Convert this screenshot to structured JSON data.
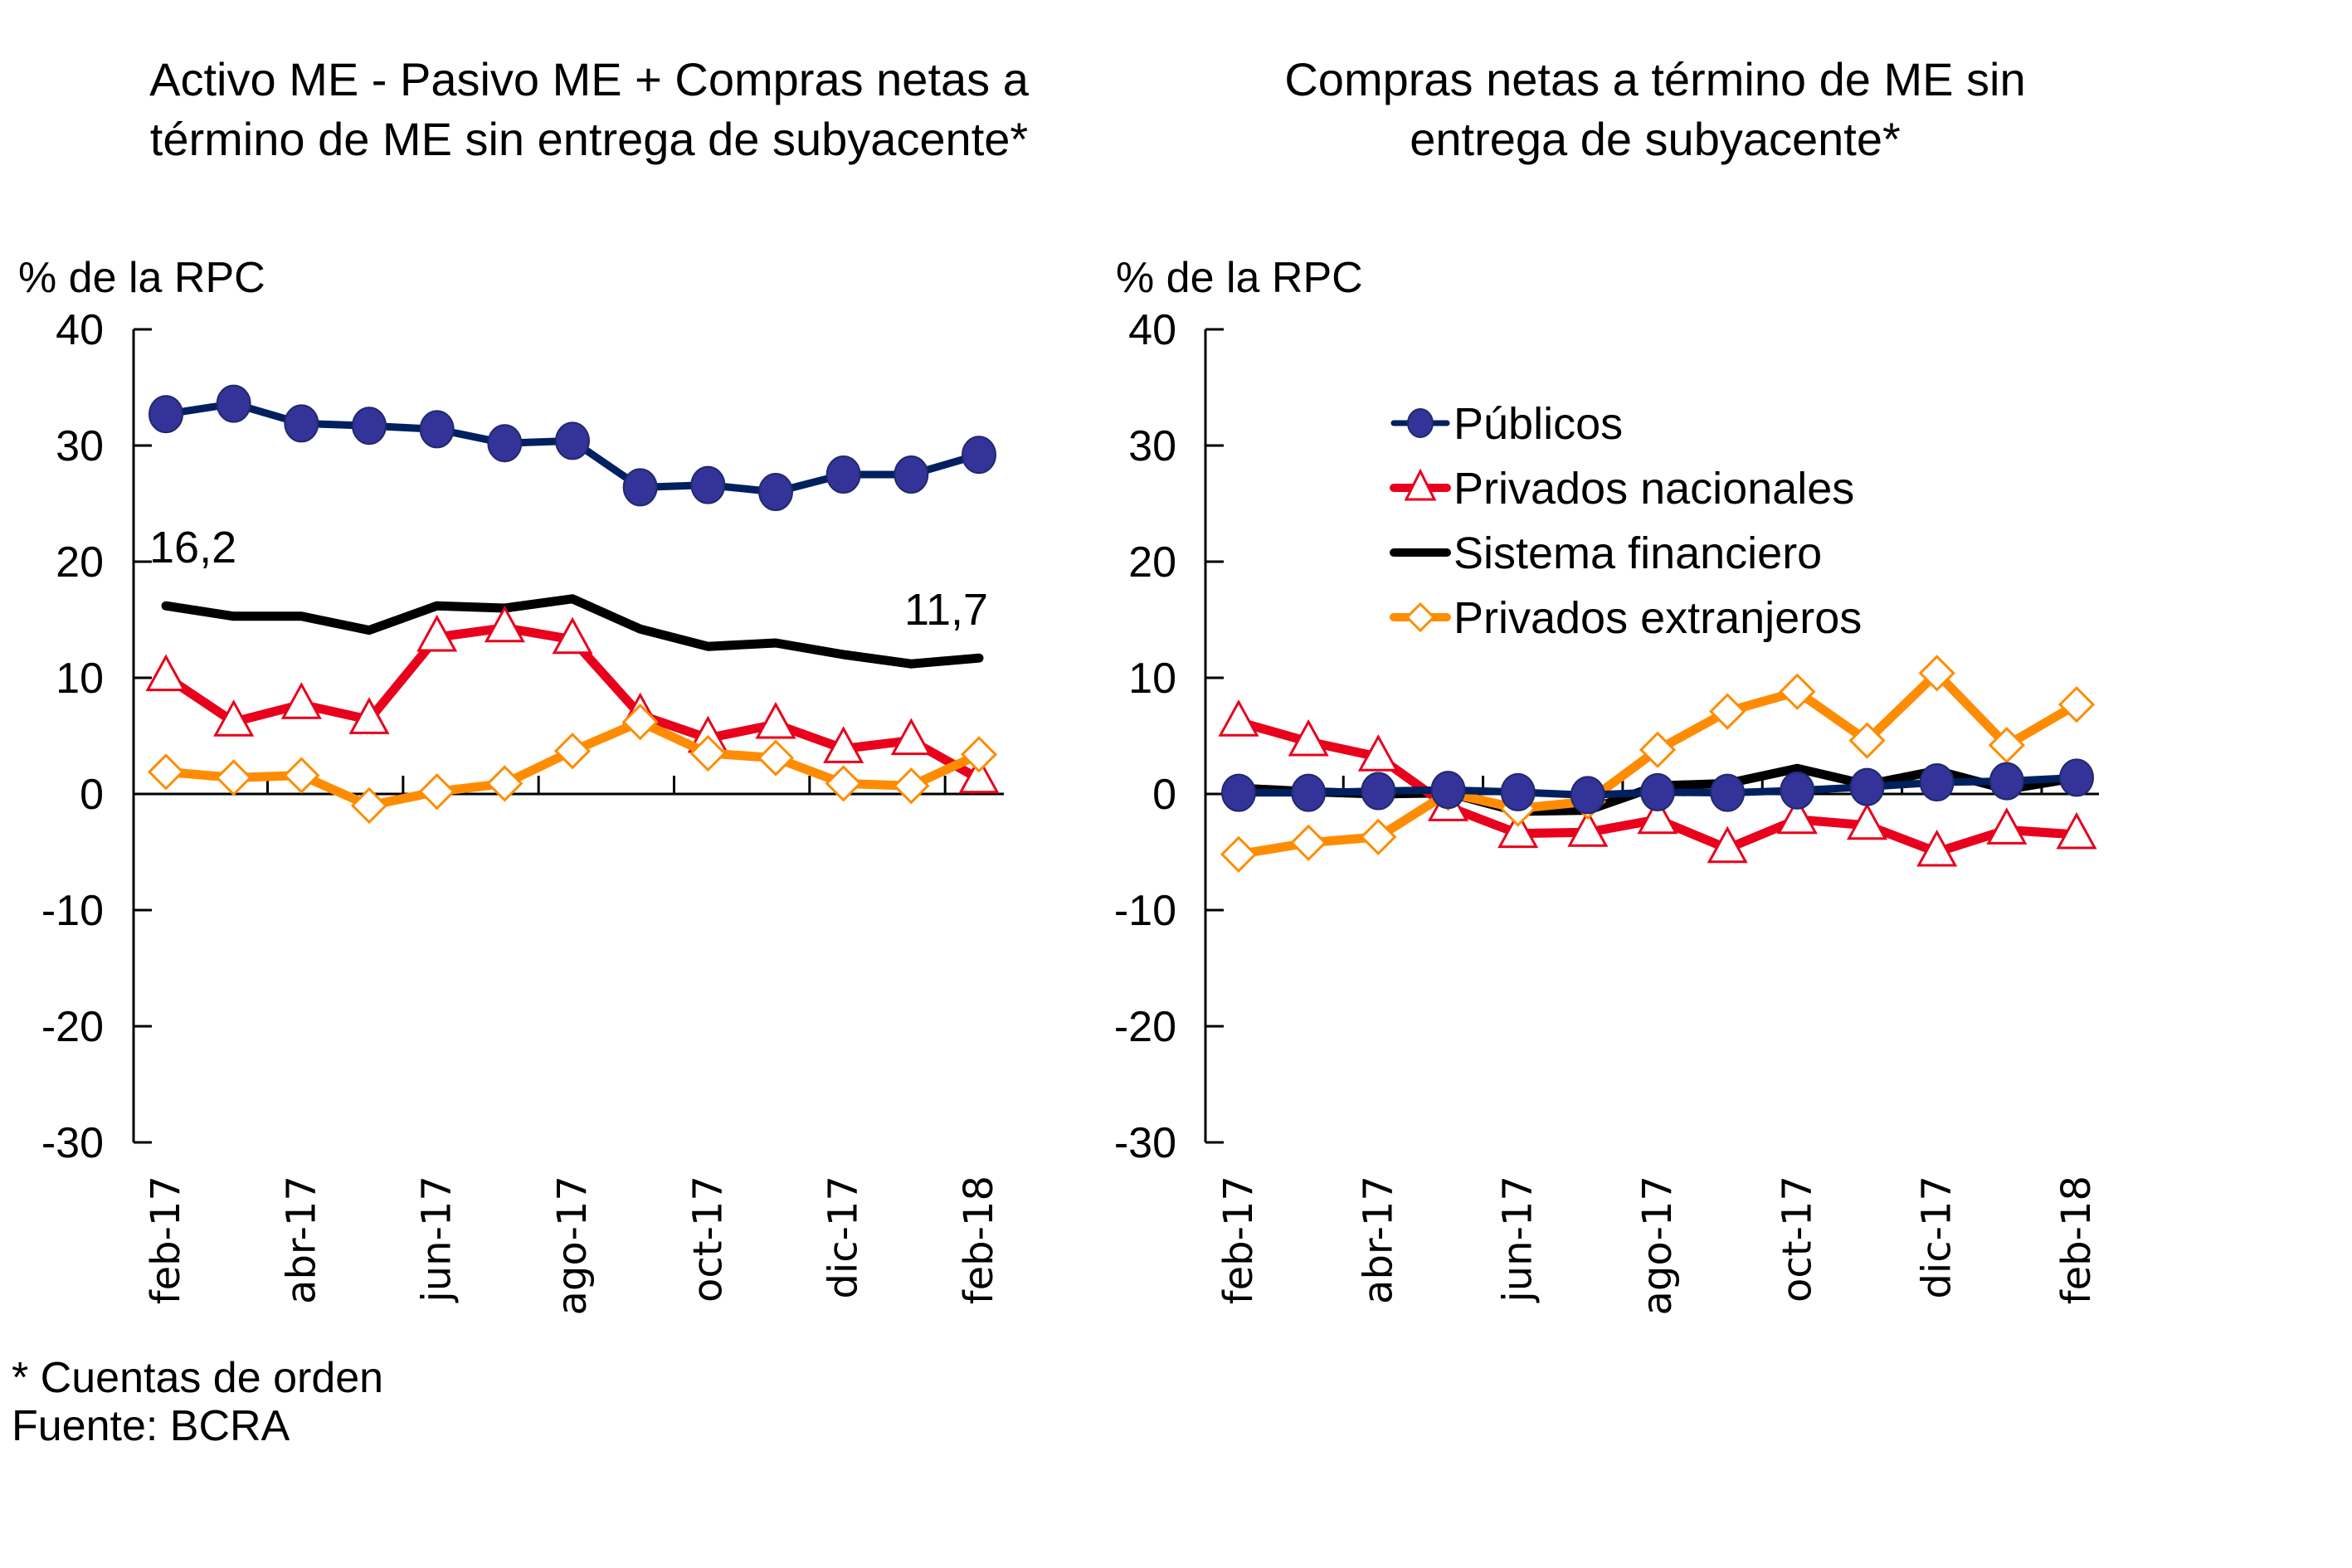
{
  "footnotes": {
    "note": "* Cuentas de orden",
    "source": "Fuente: BCRA"
  },
  "series_style": [
    {
      "name": "Públicos",
      "color": "#002060",
      "marker": "circle",
      "marker_fill": "#333399"
    },
    {
      "name": "Privados nacionales",
      "color": "#e8001c",
      "marker": "triangle",
      "marker_fill": "#ffffff"
    },
    {
      "name": "Sistema financiero",
      "color": "#000000",
      "marker": "none",
      "marker_fill": ""
    },
    {
      "name": "Privados extranjeros",
      "color": "#ff8c00",
      "marker": "diamond",
      "marker_fill": "#ffffff"
    }
  ],
  "chart_data": [
    {
      "type": "line",
      "title_lines": [
        "Activo ME - Pasivo ME + Compras netas a",
        "término de ME sin entrega de subyacente*"
      ],
      "ylabel": "% de la RPC",
      "xlabel": "",
      "ylim": [
        -30,
        40
      ],
      "yticks": [
        40,
        30,
        20,
        10,
        0,
        -10,
        -20,
        -30
      ],
      "x": [
        "feb-17",
        "mar-17",
        "abr-17",
        "may-17",
        "jun-17",
        "jul-17",
        "ago-17",
        "sep-17",
        "oct-17",
        "nov-17",
        "dic-17",
        "ene-18",
        "feb-18"
      ],
      "xtick_labels": [
        "feb-17",
        "abr-17",
        "jun-17",
        "ago-17",
        "oct-17",
        "dic-17",
        "feb-18"
      ],
      "grid": false,
      "legend": "none",
      "annotations": [
        {
          "text": "16,2",
          "series": "Sistema financiero",
          "point": "feb-17"
        },
        {
          "text": "11,7",
          "series": "Sistema financiero",
          "point": "feb-18"
        }
      ],
      "series": [
        {
          "name": "Públicos",
          "values": [
            32.7,
            33.6,
            31.9,
            31.7,
            31.4,
            30.2,
            30.4,
            26.4,
            26.6,
            26.0,
            27.5,
            27.5,
            29.2
          ]
        },
        {
          "name": "Privados nacionales",
          "values": [
            10.1,
            6.2,
            7.7,
            6.4,
            13.5,
            14.3,
            13.3,
            6.8,
            4.8,
            6.0,
            3.9,
            4.6,
            1.3
          ]
        },
        {
          "name": "Sistema financiero",
          "values": [
            16.2,
            15.3,
            15.3,
            14.1,
            16.2,
            16.0,
            16.8,
            14.2,
            12.7,
            13.0,
            12.0,
            11.2,
            11.7
          ]
        },
        {
          "name": "Privados extranjeros",
          "values": [
            1.9,
            1.4,
            1.6,
            -1.0,
            0.2,
            0.9,
            3.7,
            6.2,
            3.5,
            3.1,
            0.9,
            0.7,
            3.4
          ]
        }
      ]
    },
    {
      "type": "line",
      "title_lines": [
        "Compras netas a término de ME sin",
        "entrega de subyacente*"
      ],
      "ylabel": "% de la RPC",
      "xlabel": "",
      "ylim": [
        -30,
        40
      ],
      "yticks": [
        40,
        30,
        20,
        10,
        0,
        -10,
        -20,
        -30
      ],
      "x": [
        "feb-17",
        "mar-17",
        "abr-17",
        "may-17",
        "jun-17",
        "jul-17",
        "ago-17",
        "sep-17",
        "oct-17",
        "nov-17",
        "dic-17",
        "ene-18",
        "feb-18"
      ],
      "xtick_labels": [
        "feb-17",
        "abr-17",
        "jun-17",
        "ago-17",
        "oct-17",
        "dic-17",
        "feb-18"
      ],
      "grid": false,
      "legend": "top-right",
      "legend_entries": [
        "Públicos",
        "Privados nacionales",
        "Sistema financiero",
        "Privados extranjeros"
      ],
      "series": [
        {
          "name": "Públicos",
          "values": [
            0.1,
            0.1,
            0.25,
            0.35,
            0.15,
            -0.1,
            0.15,
            0.1,
            0.3,
            0.6,
            1.0,
            1.1,
            1.4
          ]
        },
        {
          "name": "Privados nacionales",
          "values": [
            6.2,
            4.5,
            3.2,
            -1.1,
            -3.4,
            -3.3,
            -2.2,
            -4.7,
            -2.2,
            -2.7,
            -5.0,
            -3.1,
            -3.5
          ]
        },
        {
          "name": "Sistema financiero",
          "values": [
            0.5,
            0.2,
            0.0,
            0.1,
            -1.5,
            -1.4,
            0.7,
            0.9,
            2.2,
            0.8,
            2.0,
            0.4,
            1.4
          ]
        },
        {
          "name": "Privados extranjeros",
          "values": [
            -5.2,
            -4.2,
            -3.7,
            0.1,
            -1.25,
            -0.65,
            3.8,
            7.1,
            8.8,
            4.6,
            10.4,
            4.2,
            7.7
          ]
        }
      ]
    }
  ]
}
